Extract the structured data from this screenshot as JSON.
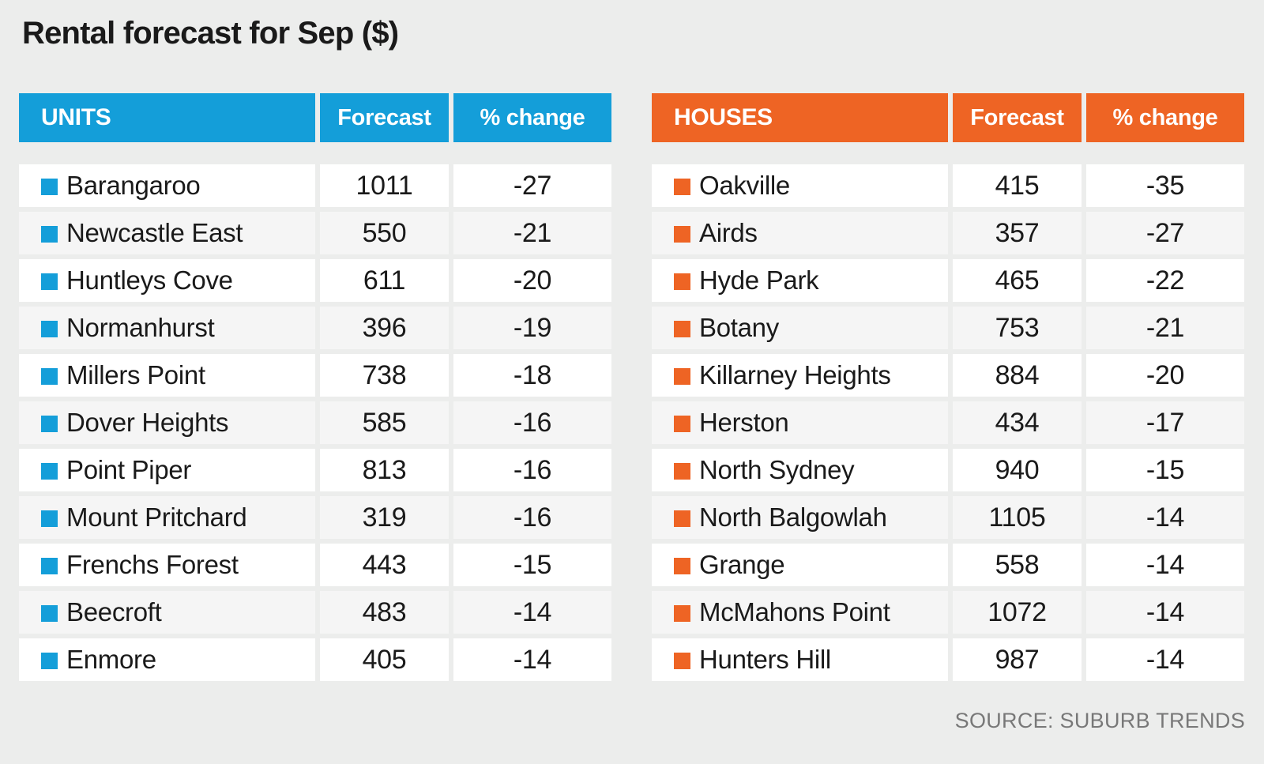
{
  "page": {
    "title": "Rental forecast for Sep ($)",
    "source": "SOURCE: SUBURB TRENDS"
  },
  "colors": {
    "units": "#149ED9",
    "houses": "#EE6424",
    "background": "#ECEDEC",
    "row_alt": "#F5F5F5",
    "text": "#1A1A1A",
    "source_text": "#787878"
  },
  "tables": [
    {
      "id": "units",
      "header": {
        "category": "UNITS",
        "forecast": "Forecast",
        "change": "% change"
      },
      "rows": [
        {
          "name": "Barangaroo",
          "forecast": "1011",
          "change": "-27"
        },
        {
          "name": "Newcastle East",
          "forecast": "550",
          "change": "-21"
        },
        {
          "name": "Huntleys Cove",
          "forecast": "611",
          "change": "-20"
        },
        {
          "name": "Normanhurst",
          "forecast": "396",
          "change": "-19"
        },
        {
          "name": "Millers Point",
          "forecast": "738",
          "change": "-18"
        },
        {
          "name": "Dover Heights",
          "forecast": "585",
          "change": "-16"
        },
        {
          "name": "Point Piper",
          "forecast": "813",
          "change": "-16"
        },
        {
          "name": "Mount Pritchard",
          "forecast": "319",
          "change": "-16"
        },
        {
          "name": "Frenchs Forest",
          "forecast": "443",
          "change": "-15"
        },
        {
          "name": "Beecroft",
          "forecast": "483",
          "change": "-14"
        },
        {
          "name": "Enmore",
          "forecast": "405",
          "change": "-14"
        }
      ]
    },
    {
      "id": "houses",
      "header": {
        "category": "HOUSES",
        "forecast": "Forecast",
        "change": "% change"
      },
      "rows": [
        {
          "name": "Oakville",
          "forecast": "415",
          "change": "-35"
        },
        {
          "name": "Airds",
          "forecast": "357",
          "change": "-27"
        },
        {
          "name": "Hyde Park",
          "forecast": "465",
          "change": "-22"
        },
        {
          "name": "Botany",
          "forecast": "753",
          "change": "-21"
        },
        {
          "name": "Killarney Heights",
          "forecast": "884",
          "change": "-20"
        },
        {
          "name": "Herston",
          "forecast": "434",
          "change": "-17"
        },
        {
          "name": "North Sydney",
          "forecast": "940",
          "change": "-15"
        },
        {
          "name": "North Balgowlah",
          "forecast": "1105",
          "change": "-14"
        },
        {
          "name": "Grange",
          "forecast": "558",
          "change": "-14"
        },
        {
          "name": "McMahons Point",
          "forecast": "1072",
          "change": "-14"
        },
        {
          "name": "Hunters Hill",
          "forecast": "987",
          "change": "-14"
        }
      ]
    }
  ],
  "chart_data": [
    {
      "type": "table",
      "title": "Rental forecast for Sep ($) — Units",
      "columns": [
        "UNITS",
        "Forecast",
        "% change"
      ],
      "rows": [
        [
          "Barangaroo",
          1011,
          -27
        ],
        [
          "Newcastle East",
          550,
          -21
        ],
        [
          "Huntleys Cove",
          611,
          -20
        ],
        [
          "Normanhurst",
          396,
          -19
        ],
        [
          "Millers Point",
          738,
          -18
        ],
        [
          "Dover Heights",
          585,
          -16
        ],
        [
          "Point Piper",
          813,
          -16
        ],
        [
          "Mount Pritchard",
          319,
          -16
        ],
        [
          "Frenchs Forest",
          443,
          -15
        ],
        [
          "Beecroft",
          483,
          -14
        ],
        [
          "Enmore",
          405,
          -14
        ]
      ]
    },
    {
      "type": "table",
      "title": "Rental forecast for Sep ($) — Houses",
      "columns": [
        "HOUSES",
        "Forecast",
        "% change"
      ],
      "rows": [
        [
          "Oakville",
          415,
          -35
        ],
        [
          "Airds",
          357,
          -27
        ],
        [
          "Hyde Park",
          465,
          -22
        ],
        [
          "Botany",
          753,
          -21
        ],
        [
          "Killarney Heights",
          884,
          -20
        ],
        [
          "Herston",
          434,
          -17
        ],
        [
          "North Sydney",
          940,
          -15
        ],
        [
          "North Balgowlah",
          1105,
          -14
        ],
        [
          "Grange",
          558,
          -14
        ],
        [
          "McMahons Point",
          1072,
          -14
        ],
        [
          "Hunters Hill",
          987,
          -14
        ]
      ]
    }
  ]
}
